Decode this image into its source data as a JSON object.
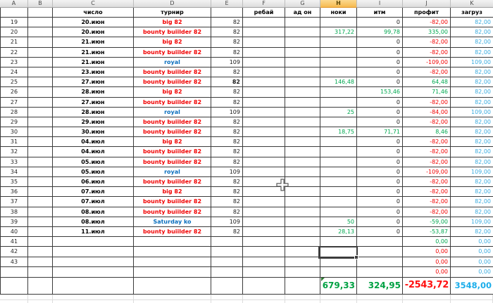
{
  "columns": [
    {
      "letter": "A"
    },
    {
      "letter": "B"
    },
    {
      "letter": "C"
    },
    {
      "letter": "D"
    },
    {
      "letter": "E"
    },
    {
      "letter": "F"
    },
    {
      "letter": "G"
    },
    {
      "letter": "H",
      "selected": true
    },
    {
      "letter": "I"
    },
    {
      "letter": "J"
    },
    {
      "letter": "K"
    }
  ],
  "header_labels": [
    "",
    "",
    "число",
    "турнир",
    "",
    "ребай",
    "ад он",
    "ноки",
    "итм",
    "профит",
    "загруз"
  ],
  "rows": [
    {
      "rid": "19",
      "num": "19",
      "date": "20.июн",
      "tour": "big 82",
      "tc": "red",
      "buyin": "82",
      "itm": "0",
      "profit": "-82,00",
      "pc": "red",
      "load": "82,00"
    },
    {
      "rid": "20",
      "num": "20",
      "date": "20.июн",
      "tour": "bounty buiilder 82",
      "tc": "red",
      "buyin": "82",
      "noki": "317,22",
      "itm": "99,78",
      "ic": "green",
      "profit": "335,00",
      "pc": "green",
      "load": "82,00"
    },
    {
      "rid": "21",
      "num": "21",
      "date": "21.июн",
      "tour": "big 82",
      "tc": "red",
      "buyin": "82",
      "itm": "0",
      "profit": "-82,00",
      "pc": "red",
      "load": "82,00"
    },
    {
      "rid": "22",
      "num": "22",
      "date": "21.июн",
      "tour": "bounty buiilder 82",
      "tc": "red",
      "buyin": "82",
      "itm": "0",
      "profit": "-82,00",
      "pc": "red",
      "load": "82,00"
    },
    {
      "rid": "23",
      "num": "23",
      "date": "21.июн",
      "tour": "royal",
      "tc": "blue",
      "buyin": "109",
      "itm": "0",
      "profit": "-109,00",
      "pc": "red",
      "load": "109,00"
    },
    {
      "rid": "24",
      "num": "24",
      "date": "23.июн",
      "tour": "bounty buiilder 82",
      "tc": "red",
      "buyin": "82",
      "itm": "0",
      "profit": "-82,00",
      "pc": "red",
      "load": "82,00"
    },
    {
      "rid": "25",
      "num": "25",
      "date": "27.июн",
      "tour": "bounty buiilder 82",
      "tc": "red",
      "buyin": "82",
      "bb": true,
      "noki": "146,48",
      "itm": "0",
      "profit": "64,48",
      "pc": "green",
      "load": "82,00"
    },
    {
      "rid": "26",
      "num": "26",
      "date": "28.июн",
      "tour": "big 82",
      "tc": "red",
      "buyin": "82",
      "itm": "153,46",
      "ic": "green",
      "profit": "71,46",
      "pc": "green",
      "load": "82,00"
    },
    {
      "rid": "27",
      "num": "27",
      "date": "27.июн",
      "tour": "bounty buiilder 82",
      "tc": "red",
      "buyin": "82",
      "itm": "0",
      "profit": "-82,00",
      "pc": "red",
      "load": "82,00"
    },
    {
      "rid": "28",
      "num": "28",
      "date": "28.июн",
      "tour": "royal",
      "tc": "blue",
      "buyin": "109",
      "noki": "25",
      "itm": "0",
      "profit": "-84,00",
      "pc": "red",
      "load": "109,00"
    },
    {
      "rid": "29",
      "num": "29",
      "date": "29.июн",
      "tour": "bounty buiilder 82",
      "tc": "red",
      "buyin": "82",
      "itm": "0",
      "profit": "-82,00",
      "pc": "red",
      "load": "82,00"
    },
    {
      "rid": "30",
      "num": "30",
      "date": "30.июн",
      "tour": "bounty buiilder 82",
      "tc": "red",
      "buyin": "82",
      "noki": "18,75",
      "itm": "71,71",
      "ic": "green",
      "profit": "8,46",
      "pc": "green",
      "load": "82,00"
    },
    {
      "rid": "31",
      "num": "31",
      "date": "04.июл",
      "tour": "big 82",
      "tc": "red",
      "buyin": "82",
      "itm": "0",
      "profit": "-82,00",
      "pc": "red",
      "load": "82,00"
    },
    {
      "rid": "32",
      "num": "32",
      "date": "04.июл",
      "tour": "bounty buiilder 82",
      "tc": "red",
      "buyin": "82",
      "itm": "0",
      "profit": "-82,00",
      "pc": "red",
      "load": "82,00"
    },
    {
      "rid": "33",
      "num": "33",
      "date": "05.июл",
      "tour": "bounty buiilder 82",
      "tc": "red",
      "buyin": "82",
      "itm": "0",
      "profit": "-82,00",
      "pc": "red",
      "load": "82,00"
    },
    {
      "rid": "34",
      "num": "34",
      "date": "05.июл",
      "tour": "royal",
      "tc": "blue",
      "buyin": "109",
      "itm": "0",
      "profit": "-109,00",
      "pc": "red",
      "load": "109,00"
    },
    {
      "rid": "35",
      "num": "35",
      "date": "06.июл",
      "tour": "bounty buiilder 82",
      "tc": "red",
      "buyin": "82",
      "itm": "0",
      "profit": "-82,00",
      "pc": "red",
      "load": "82,00"
    },
    {
      "rid": "36",
      "num": "36",
      "date": "07.июл",
      "tour": "big 82",
      "tc": "red",
      "buyin": "82",
      "itm": "0",
      "profit": "-82,00",
      "pc": "red",
      "load": "82,00"
    },
    {
      "rid": "37",
      "num": "37",
      "date": "07.июл",
      "tour": "bounty buiilder 82",
      "tc": "red",
      "buyin": "82",
      "itm": "0",
      "profit": "-82,00",
      "pc": "red",
      "load": "82,00"
    },
    {
      "rid": "38",
      "num": "38",
      "date": "08.июл",
      "tour": "bounty buiilder 82",
      "tc": "red",
      "buyin": "82",
      "itm": "0",
      "profit": "-82,00",
      "pc": "red",
      "load": "82,00"
    },
    {
      "rid": "39",
      "num": "39",
      "date": "08.июл",
      "tour": "Saturday ko",
      "tc": "blue",
      "buyin": "109",
      "noki": "50",
      "itm": "0",
      "profit": "-59,00",
      "pc": "green",
      "load": "109,00"
    },
    {
      "rid": "40",
      "num": "40",
      "date": "11.июл",
      "tour": "bounty buiilder 82",
      "tc": "red",
      "buyin": "82",
      "noki": "28,13",
      "itm": "0",
      "profit": "-53,87",
      "pc": "green",
      "load": "82,00"
    },
    {
      "rid": "41",
      "num": "41",
      "profit": "0,00",
      "pc": "green",
      "load": "0,00"
    },
    {
      "rid": "42",
      "num": "42",
      "profit": "0,00",
      "pc": "red",
      "load": "0,00"
    },
    {
      "rid": "43",
      "num": "43",
      "profit": "0,00",
      "pc": "red",
      "load": "0,00"
    },
    {
      "rid": "44",
      "num": "",
      "tall": true,
      "profit": "0,00",
      "pc": "red",
      "load": "0,00"
    }
  ],
  "totals": {
    "noki": "679,33",
    "itm": "324,95",
    "profit": "-2543,72",
    "load": "3548,00"
  },
  "selection": {
    "active_cell": "H42"
  },
  "colors": {
    "red": "#f10000",
    "green": "#00a850",
    "blue": "#0a6ebd",
    "lightblue": "#3aabdf",
    "total_green": "#00a143",
    "total_red": "#ff1010",
    "total_blue": "#1badea",
    "text": "#1a1a1a",
    "selected_header_bg": "#f9c966"
  }
}
